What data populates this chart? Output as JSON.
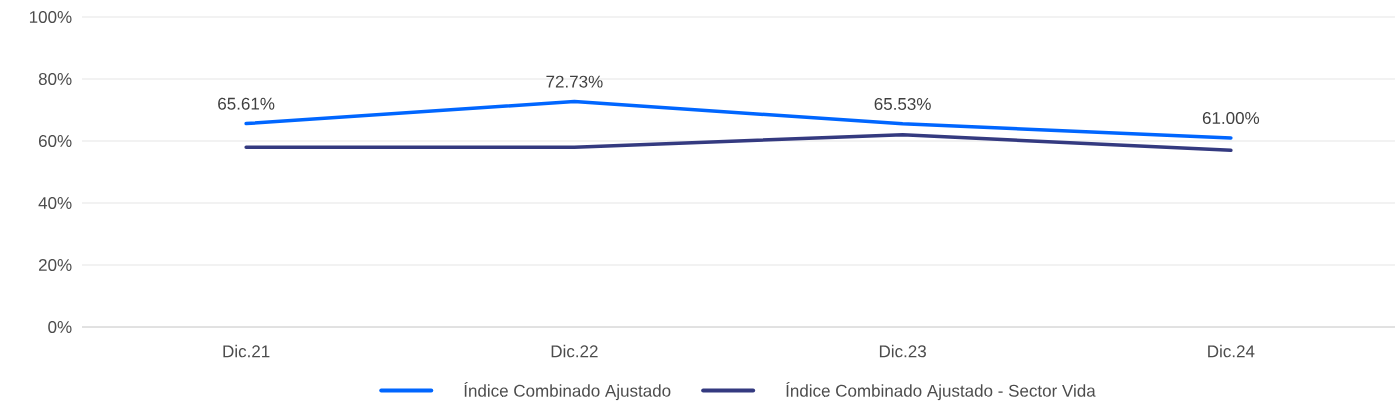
{
  "chart_data": {
    "type": "line",
    "categories": [
      "Dic.21",
      "Dic.22",
      "Dic.23",
      "Dic.24"
    ],
    "series": [
      {
        "name": "Índice Combinado Ajustado",
        "color": "#0066ff",
        "values": [
          65.61,
          72.73,
          65.53,
          61.0
        ],
        "value_labels": [
          "65.61%",
          "72.73%",
          "65.53%",
          "61.00%"
        ]
      },
      {
        "name": "Índice Combinado Ajustado - Sector Vida",
        "color": "#343a80",
        "values": [
          58,
          58,
          62,
          57
        ]
      }
    ],
    "ylim": [
      0,
      100
    ],
    "yticks": [
      {
        "value": 0,
        "label": "0%"
      },
      {
        "value": 20,
        "label": "20%"
      },
      {
        "value": 40,
        "label": "40%"
      },
      {
        "value": 60,
        "label": "60%"
      },
      {
        "value": 80,
        "label": "80%"
      },
      {
        "value": 100,
        "label": "100%"
      }
    ],
    "grid": "y",
    "legend": "bottom",
    "marker": "none",
    "line_style": "solid"
  }
}
